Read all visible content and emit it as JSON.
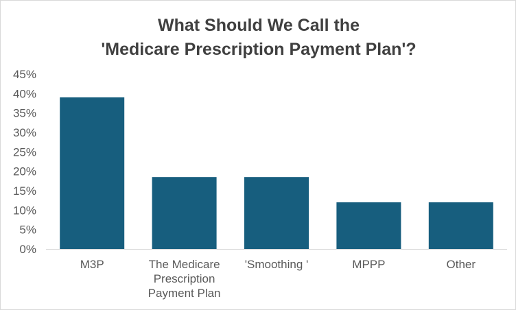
{
  "chart_data": {
    "type": "bar",
    "title_lines": [
      "What Should We Call the",
      "'Medicare Prescription Payment Plan'?"
    ],
    "categories": [
      [
        "M3P"
      ],
      [
        "The Medicare",
        "Prescription",
        "Payment Plan"
      ],
      [
        "'Smoothing '"
      ],
      [
        "MPPP"
      ],
      [
        "Other"
      ]
    ],
    "values": [
      39,
      18.5,
      18.5,
      12,
      12
    ],
    "value_format": "percent",
    "ylim": [
      0,
      45
    ],
    "y_ticks": [
      "0%",
      "5%",
      "10%",
      "15%",
      "20%",
      "25%",
      "30%",
      "35%",
      "40%",
      "45%"
    ],
    "y_tick_values": [
      0,
      5,
      10,
      15,
      20,
      25,
      30,
      35,
      40,
      45
    ],
    "grid": false,
    "legend": "none",
    "bar_color": "#175e7e",
    "axis_color": "#d9d9d9",
    "title_color": "#404040",
    "label_color": "#595959"
  }
}
